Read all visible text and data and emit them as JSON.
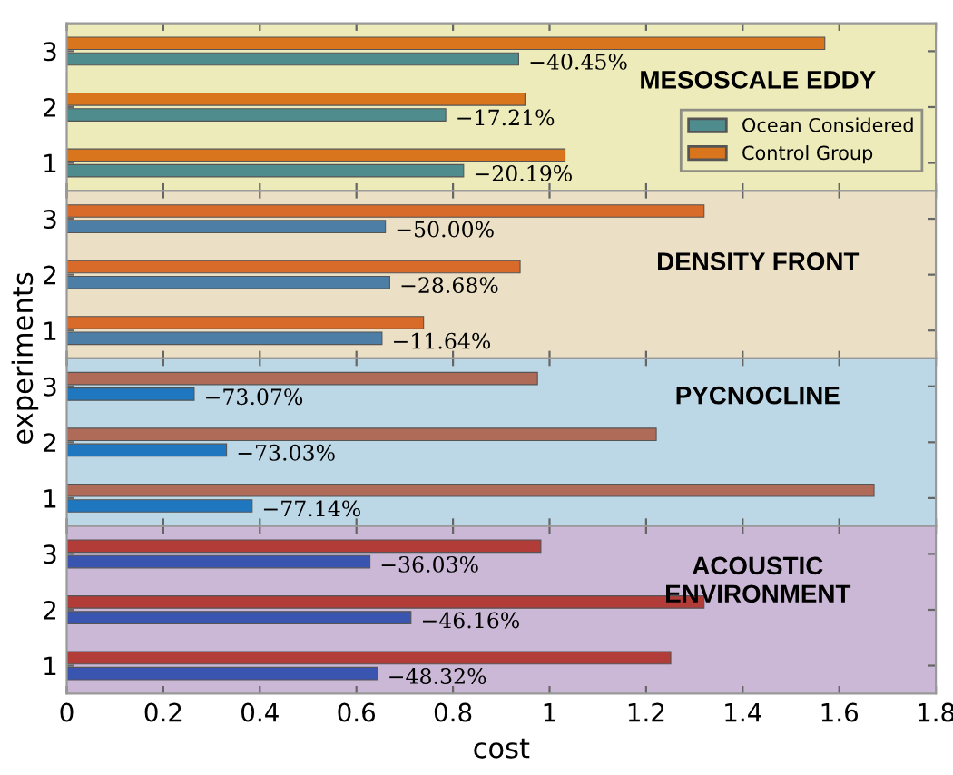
{
  "chart_data": [
    {
      "type": "bar",
      "orientation": "horizontal",
      "categories": [
        "3",
        "2",
        "1"
      ],
      "ylabel": "experiments",
      "xlim": [
        0,
        1.8
      ],
      "xticks": [
        0,
        0.2,
        0.4,
        0.6,
        0.8,
        1,
        1.2,
        1.4,
        1.6,
        1.8
      ],
      "tick_labels": "y",
      "legend": "right",
      "grid": false,
      "bands": [
        {
          "axis": "x",
          "from": 0,
          "to": 1.8,
          "color": "#ecebb9",
          "label": "MESOSCALE EDDY"
        }
      ],
      "series": [
        {
          "name": "Control Group",
          "color": "#d9751c",
          "values": [
            1.57,
            0.949,
            1.032
          ]
        },
        {
          "name": "Ocean Considered",
          "color": "#4f8c8e",
          "values": [
            0.936,
            0.785,
            0.822
          ]
        }
      ],
      "annotations": [
        {
          "text": "−40.45%",
          "x": 0.936,
          "y": "3"
        },
        {
          "text": "−17.21%",
          "x": 0.785,
          "y": "2"
        },
        {
          "text": "−20.19%",
          "x": 0.822,
          "y": "1"
        }
      ]
    },
    {
      "type": "bar",
      "orientation": "horizontal",
      "categories": [
        "3",
        "2",
        "1"
      ],
      "xlim": [
        0,
        1.8
      ],
      "xticks": [
        0,
        0.2,
        0.4,
        0.6,
        0.8,
        1,
        1.2,
        1.4,
        1.6,
        1.8
      ],
      "tick_labels": "y",
      "grid": false,
      "bands": [
        {
          "axis": "x",
          "from": 0,
          "to": 1.8,
          "color": "#ebe0c6",
          "label": "DENSITY FRONT"
        }
      ],
      "series": [
        {
          "color": "#d86a2a",
          "values": [
            1.32,
            0.939,
            0.739
          ]
        },
        {
          "color": "#4d7fa6",
          "values": [
            0.66,
            0.669,
            0.653
          ]
        }
      ],
      "annotations": [
        {
          "text": "−50.00%",
          "x": 0.66,
          "y": "3"
        },
        {
          "text": "−28.68%",
          "x": 0.669,
          "y": "2"
        },
        {
          "text": "−11.64%",
          "x": 0.653,
          "y": "1"
        }
      ]
    },
    {
      "type": "bar",
      "orientation": "horizontal",
      "categories": [
        "3",
        "2",
        "1"
      ],
      "xlim": [
        0,
        1.8
      ],
      "xticks": [
        0,
        0.2,
        0.4,
        0.6,
        0.8,
        1,
        1.2,
        1.4,
        1.6,
        1.8
      ],
      "tick_labels": "y",
      "grid": false,
      "bands": [
        {
          "axis": "x",
          "from": 0,
          "to": 1.8,
          "color": "#bcd8e6",
          "label": "PYCNOCLINE"
        }
      ],
      "series": [
        {
          "color": "#b06a58",
          "values": [
            0.975,
            1.221,
            1.672
          ]
        },
        {
          "color": "#1f77c0",
          "values": [
            0.264,
            0.331,
            0.384
          ]
        }
      ],
      "annotations": [
        {
          "text": "−73.07%",
          "x": 0.264,
          "y": "3"
        },
        {
          "text": "−73.03%",
          "x": 0.331,
          "y": "2"
        },
        {
          "text": "−77.14%",
          "x": 0.384,
          "y": "1"
        }
      ]
    },
    {
      "type": "bar",
      "orientation": "horizontal",
      "categories": [
        "3",
        "2",
        "1"
      ],
      "xlabel": "cost",
      "xlim": [
        0,
        1.8
      ],
      "xticks": [
        0,
        0.2,
        0.4,
        0.6,
        0.8,
        1,
        1.2,
        1.4,
        1.6,
        1.8
      ],
      "grid": false,
      "bands": [
        {
          "axis": "x",
          "from": 0,
          "to": 1.8,
          "color": "#cbb8d6",
          "label": "ACOUSTIC\nENVIRONMENT"
        }
      ],
      "series": [
        {
          "color": "#b23c38",
          "values": [
            0.982,
            1.32,
            1.251
          ]
        },
        {
          "color": "#3a55b0",
          "values": [
            0.628,
            0.713,
            0.644
          ]
        }
      ],
      "annotations": [
        {
          "text": "−36.03%",
          "x": 0.628,
          "y": "3"
        },
        {
          "text": "−46.16%",
          "x": 0.713,
          "y": "2"
        },
        {
          "text": "−48.32%",
          "x": 0.644,
          "y": "1"
        }
      ]
    }
  ]
}
